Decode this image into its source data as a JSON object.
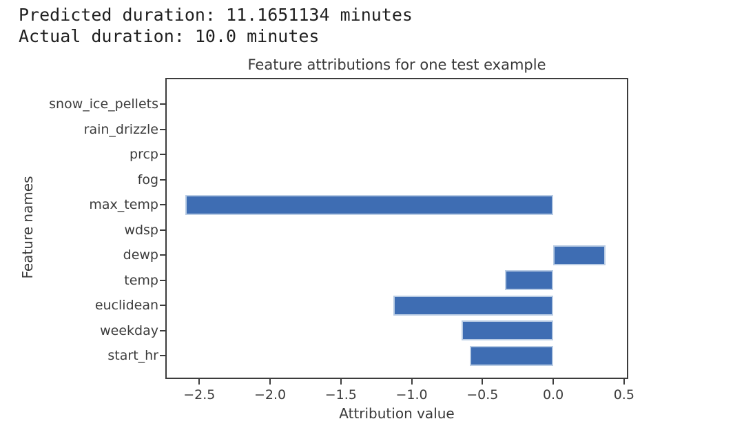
{
  "header": {
    "line1": "Predicted duration: 11.1651134 minutes",
    "line2": "Actual duration: 10.0 minutes"
  },
  "chart_data": {
    "type": "bar",
    "orientation": "horizontal",
    "title": "Feature attributions for one test example",
    "xlabel": "Attribution value",
    "ylabel": "Feature names",
    "categories_top_to_bottom": [
      "snow_ice_pellets",
      "rain_drizzle",
      "prcp",
      "fog",
      "max_temp",
      "wdsp",
      "dewp",
      "temp",
      "euclidean",
      "weekday",
      "start_hr"
    ],
    "values": [
      0,
      0,
      0,
      0,
      -2.6,
      0,
      0.37,
      -0.34,
      -1.13,
      -0.65,
      -0.59
    ],
    "xlim": [
      -2.74,
      0.53
    ],
    "xticks": {
      "values": [
        -2.5,
        -2.0,
        -1.5,
        -1.0,
        -0.5,
        0.0,
        0.5
      ],
      "labels": [
        "−2.5",
        "−2.0",
        "−1.5",
        "−1.0",
        "−0.5",
        "0.0",
        "0.5"
      ]
    },
    "grid": false,
    "legend": "none",
    "bar_color": "#3e6db3",
    "bar_edge_color": "#b9cce4",
    "axis_color": "#3c3c3c"
  }
}
